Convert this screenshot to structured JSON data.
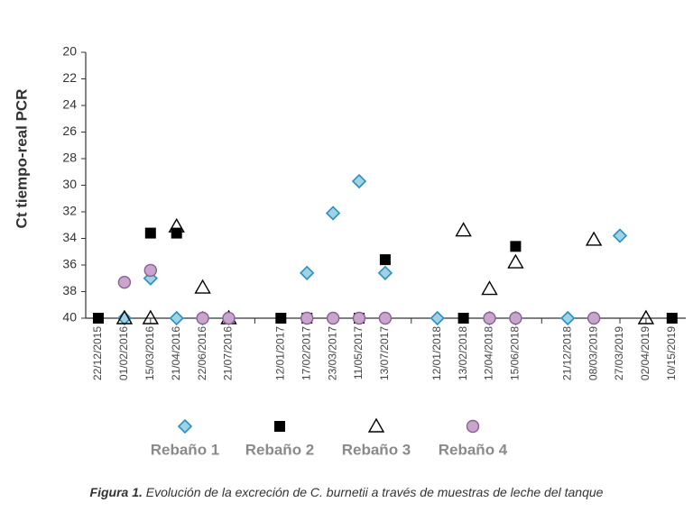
{
  "caption": {
    "prefix": "Figura 1.",
    "text": "Evolución de la excreción de C. burnetii a través de muestras de leche del tanque"
  },
  "colors": {
    "rebano1_fill": "#9ed3e6",
    "rebano1_stroke": "#2b8fbf",
    "rebano2_fill": "#000000",
    "rebano3_stroke": "#000000",
    "rebano4_fill": "#c8a6cc",
    "rebano4_stroke": "#8b5f95",
    "axis": "#333333",
    "legend_text": "#8a8a8a"
  },
  "chart_data": {
    "type": "scatter",
    "ylabel": "Ct tiempo-real PCR",
    "xlabel": "",
    "title": "",
    "ylim": [
      20,
      40
    ],
    "y_inverted": true,
    "yticks": [
      20,
      22,
      24,
      26,
      28,
      30,
      32,
      34,
      36,
      38,
      40
    ],
    "grid": false,
    "legend_position": "bottom",
    "categories": [
      "22/12/2015",
      "01/02/2016",
      "15/03/2016",
      "21/04/2016",
      "22/06/2016",
      "21/07/2016",
      "",
      "12/01/2017",
      "17/02/2017",
      "23/03/2017",
      "11/05/2017",
      "13/07/2017",
      "",
      "12/01/2018",
      "13/02/2018",
      "12/04/2018",
      "15/06/2018",
      "",
      "21/12/2018",
      "08/03/2019",
      "27/03/2019",
      "02/04/2019",
      "10/15/2019"
    ],
    "series": [
      {
        "name": "Rebaño 1",
        "marker": "diamond",
        "values": [
          null,
          40,
          37,
          40,
          40,
          40,
          null,
          null,
          36.6,
          32.1,
          29.7,
          36.6,
          null,
          40,
          null,
          40,
          40,
          null,
          40,
          null,
          33.8,
          null,
          null
        ]
      },
      {
        "name": "Rebaño 2",
        "marker": "square",
        "values": [
          40,
          null,
          33.6,
          33.6,
          null,
          null,
          null,
          40,
          40,
          null,
          40,
          35.6,
          null,
          null,
          40,
          null,
          34.6,
          null,
          null,
          null,
          null,
          null,
          40
        ]
      },
      {
        "name": "Rebaño 3",
        "marker": "triangle",
        "values": [
          null,
          40,
          40,
          33.1,
          37.7,
          40,
          null,
          null,
          null,
          null,
          null,
          null,
          null,
          null,
          33.4,
          37.8,
          35.8,
          null,
          null,
          34.1,
          null,
          40,
          null
        ]
      },
      {
        "name": "Rebaño 4",
        "marker": "circle",
        "values": [
          null,
          37.3,
          36.4,
          null,
          40,
          40,
          null,
          null,
          40,
          40,
          40,
          40,
          null,
          null,
          null,
          40,
          40,
          null,
          null,
          40,
          null,
          null,
          null
        ]
      }
    ]
  }
}
